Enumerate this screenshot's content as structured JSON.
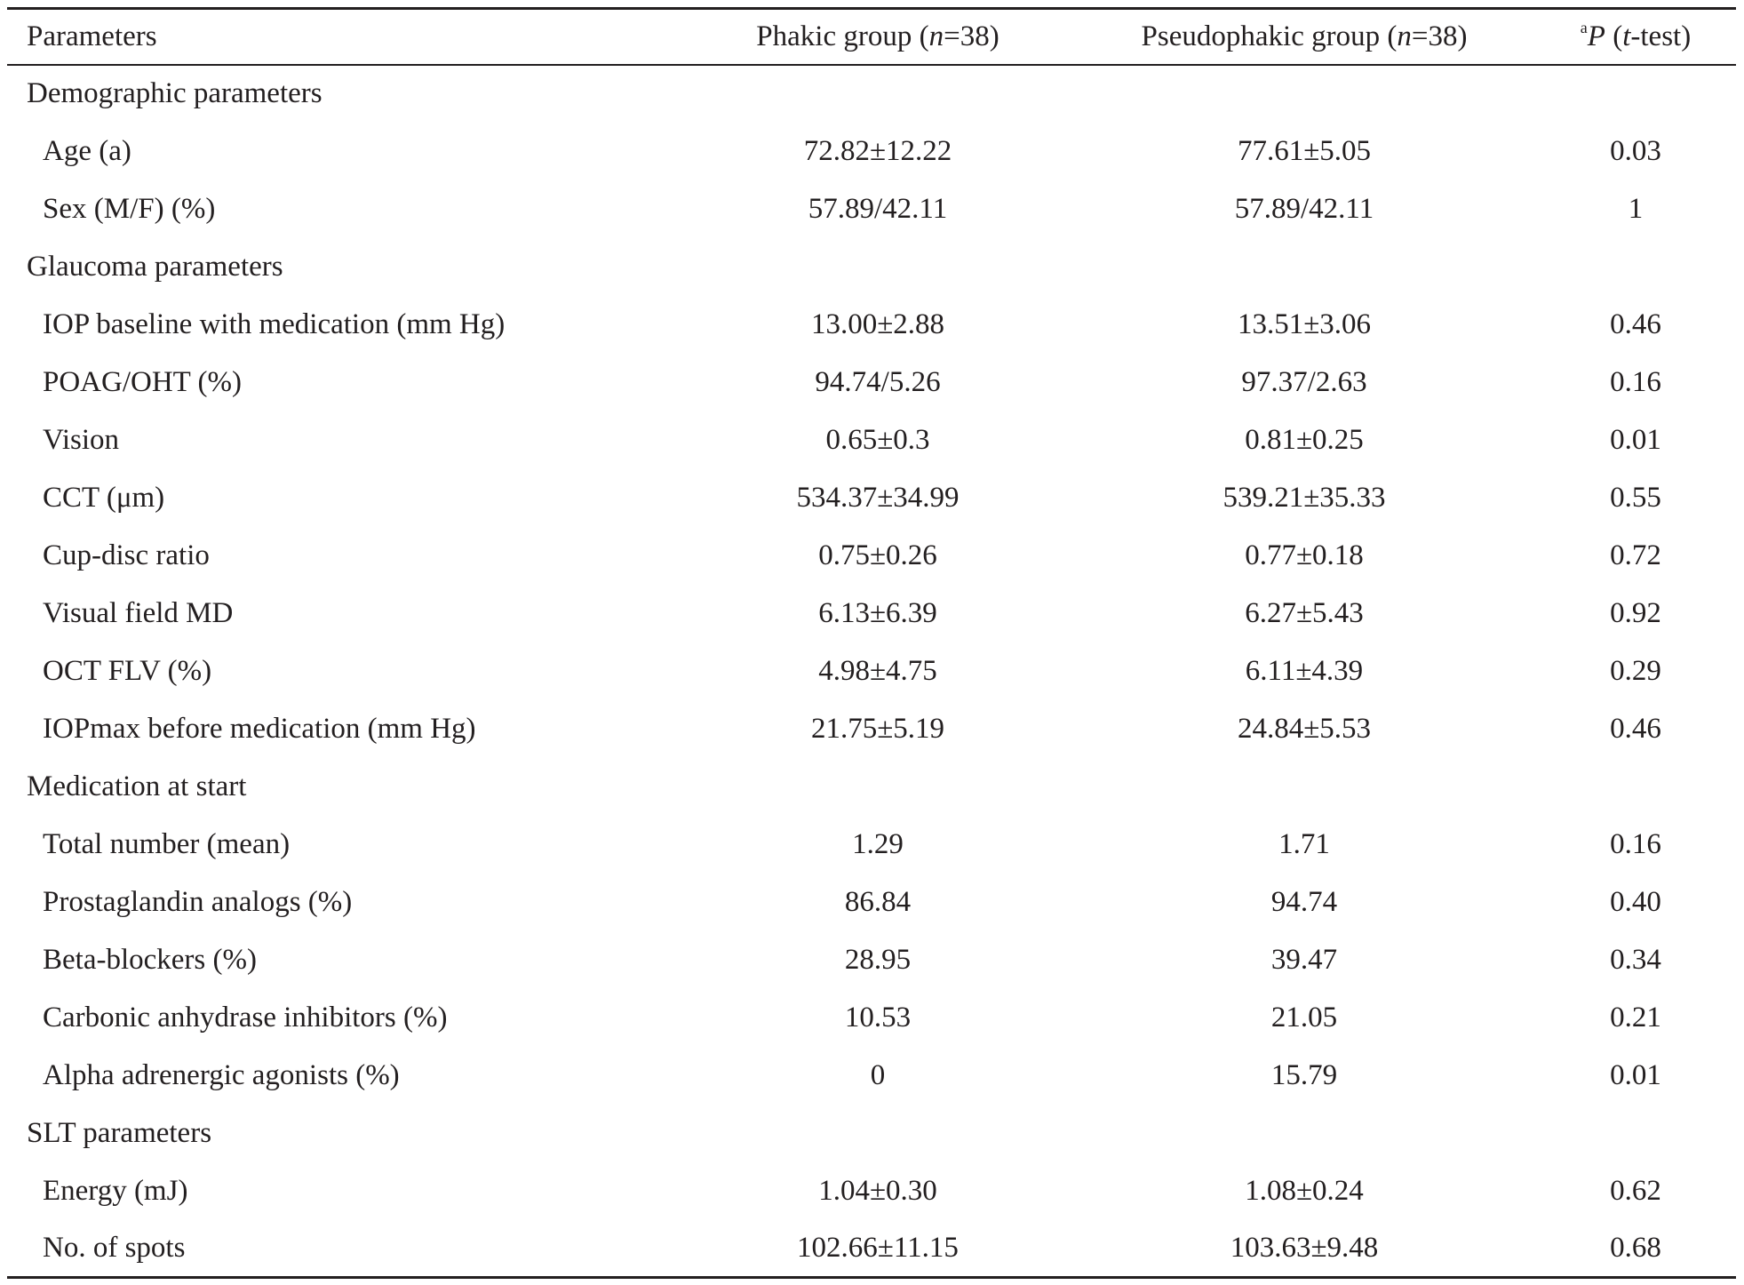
{
  "header": {
    "parameters": "Parameters",
    "phakic_prefix": "Phakic group (",
    "pseudo_prefix": "Pseudophakic group (",
    "n_symbol": "n",
    "n_value": "=38)",
    "p_superscript": "a",
    "p_symbol": "P",
    "p_open": " (",
    "t_symbol": "t",
    "p_close": "-test)"
  },
  "rows": [
    {
      "type": "section",
      "label": "Demographic parameters"
    },
    {
      "type": "param",
      "label": "Age (a)",
      "phakic": "72.82±12.22",
      "pseudophakic": "77.61±5.05",
      "p": "0.03"
    },
    {
      "type": "param",
      "label": "Sex (M/F) (%)",
      "phakic": "57.89/42.11",
      "pseudophakic": "57.89/42.11",
      "p": "1"
    },
    {
      "type": "section",
      "label": "Glaucoma parameters"
    },
    {
      "type": "param",
      "label": "IOP baseline with medication (mm Hg)",
      "phakic": "13.00±2.88",
      "pseudophakic": "13.51±3.06",
      "p": "0.46"
    },
    {
      "type": "param",
      "label": "POAG/OHT (%)",
      "phakic": "94.74/5.26",
      "pseudophakic": "97.37/2.63",
      "p": "0.16"
    },
    {
      "type": "param",
      "label": "Vision",
      "phakic": "0.65±0.3",
      "pseudophakic": "0.81±0.25",
      "p": "0.01"
    },
    {
      "type": "param",
      "label": "CCT (μm)",
      "phakic": "534.37±34.99",
      "pseudophakic": "539.21±35.33",
      "p": "0.55"
    },
    {
      "type": "param",
      "label": "Cup-disc ratio",
      "phakic": "0.75±0.26",
      "pseudophakic": "0.77±0.18",
      "p": "0.72"
    },
    {
      "type": "param",
      "label": "Visual field MD",
      "phakic": "6.13±6.39",
      "pseudophakic": "6.27±5.43",
      "p": "0.92"
    },
    {
      "type": "param",
      "label": "OCT FLV (%)",
      "phakic": "4.98±4.75",
      "pseudophakic": "6.11±4.39",
      "p": "0.29"
    },
    {
      "type": "param",
      "label": "IOPmax before medication (mm Hg)",
      "phakic": "21.75±5.19",
      "pseudophakic": "24.84±5.53",
      "p": "0.46"
    },
    {
      "type": "section",
      "label": "Medication at start"
    },
    {
      "type": "param",
      "label": "Total number (mean)",
      "phakic": "1.29",
      "pseudophakic": "1.71",
      "p": "0.16"
    },
    {
      "type": "param",
      "label": "Prostaglandin analogs (%)",
      "phakic": "86.84",
      "pseudophakic": "94.74",
      "p": "0.40"
    },
    {
      "type": "param",
      "label": "Beta-blockers (%)",
      "phakic": "28.95",
      "pseudophakic": "39.47",
      "p": "0.34"
    },
    {
      "type": "param",
      "label": "Carbonic anhydrase inhibitors (%)",
      "phakic": "10.53",
      "pseudophakic": "21.05",
      "p": "0.21"
    },
    {
      "type": "param",
      "label": "Alpha adrenergic agonists (%)",
      "phakic": "0",
      "pseudophakic": "15.79",
      "p": "0.01"
    },
    {
      "type": "section",
      "label": "SLT parameters"
    },
    {
      "type": "param",
      "label": "Energy (mJ)",
      "phakic": "1.04±0.30",
      "pseudophakic": "1.08±0.24",
      "p": "0.62"
    },
    {
      "type": "param",
      "label": "No. of spots",
      "phakic": "102.66±11.15",
      "pseudophakic": "103.63±9.48",
      "p": "0.68"
    }
  ]
}
